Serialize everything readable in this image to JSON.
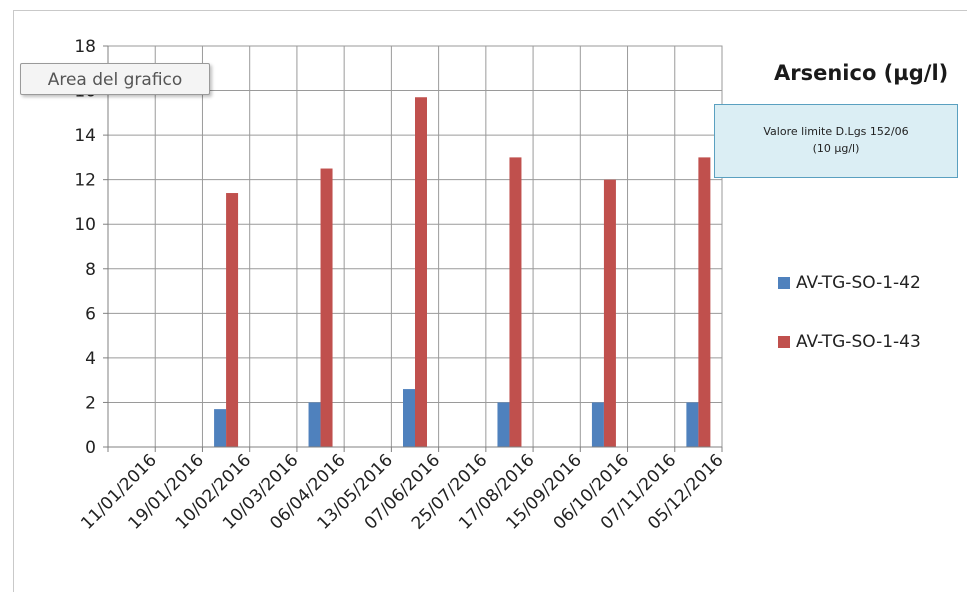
{
  "tooltip": {
    "text": "Area del grafico"
  },
  "limit_box": {
    "line1": "Valore  limite  D.Lgs 152/06",
    "line2": "(10 µg/l)"
  },
  "chart_data": {
    "type": "bar",
    "title": "Arsenico (µg/l)",
    "categories": [
      "11/01/2016",
      "19/01/2016",
      "10/02/2016",
      "10/03/2016",
      "06/04/2016",
      "13/05/2016",
      "07/06/2016",
      "25/07/2016",
      "17/08/2016",
      "15/09/2016",
      "06/10/2016",
      "07/11/2016",
      "05/12/2016"
    ],
    "series": [
      {
        "name": "AV-TG-SO-1-42",
        "color": "#4f81bd",
        "values": [
          null,
          null,
          1.7,
          null,
          2,
          null,
          2.6,
          null,
          2,
          null,
          2,
          null,
          2
        ]
      },
      {
        "name": "AV-TG-SO-1-43",
        "color": "#c0504d",
        "values": [
          null,
          null,
          11.4,
          null,
          12.5,
          null,
          15.7,
          null,
          13,
          null,
          12,
          null,
          13
        ]
      }
    ],
    "ylim": [
      0,
      18
    ],
    "yticks": [
      0,
      2,
      4,
      6,
      8,
      10,
      12,
      14,
      16,
      18
    ],
    "grid": true,
    "legend": "right"
  }
}
